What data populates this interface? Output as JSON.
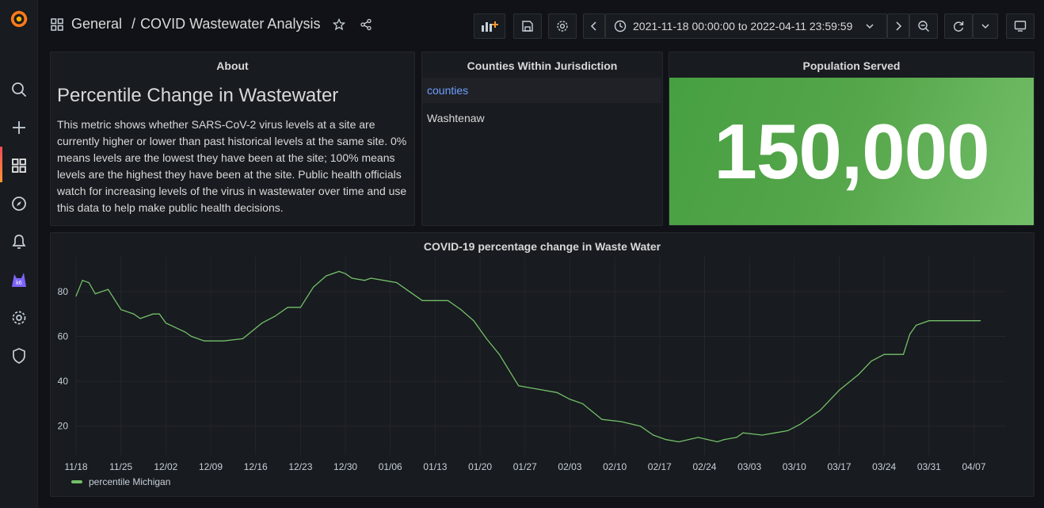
{
  "header": {
    "folder": "General",
    "separator": "/",
    "title": "COVID Wastewater Analysis",
    "time_range": "2021-11-18 00:00:00 to 2022-04-11 23:59:59"
  },
  "sidebar": {
    "items": [
      "grafana-logo-icon",
      "search-icon",
      "plus-icon",
      "dashboards-icon",
      "explore-icon",
      "alerting-icon",
      "k6-icon",
      "gear-icon",
      "shield-icon"
    ]
  },
  "about": {
    "title": "About",
    "heading": "Percentile Change in Wastewater",
    "body": "This metric shows whether SARS-CoV-2 virus levels at a site are currently higher or lower than past historical levels at the same site. 0% means levels are the lowest they have been at the site; 100% means levels are the highest they have been at the site. Public health officials watch for increasing levels of the virus in wastewater over time and use this data to help make public health decisions."
  },
  "counties": {
    "title": "Counties Within Jurisdiction",
    "column": "counties",
    "rows": [
      "Washtenaw"
    ]
  },
  "population": {
    "title": "Population Served",
    "value": "150,000",
    "color": "#56a64b"
  },
  "chart_data": {
    "type": "line",
    "title": "COVID-19 percentage change in Waste Water",
    "x_tick_labels": [
      "11/18",
      "11/25",
      "12/02",
      "12/09",
      "12/16",
      "12/23",
      "12/30",
      "01/06",
      "01/13",
      "01/20",
      "01/27",
      "02/03",
      "02/10",
      "02/17",
      "02/24",
      "03/03",
      "03/10",
      "03/17",
      "03/24",
      "03/31",
      "04/07"
    ],
    "y_ticks": [
      20,
      40,
      60,
      80
    ],
    "ylim": [
      10,
      92
    ],
    "series": [
      {
        "name": "percentile Michigan",
        "color": "#73bf69",
        "x": [
          "2021-11-18",
          "2021-11-19",
          "2021-11-20",
          "2021-11-21",
          "2021-11-23",
          "2021-11-25",
          "2021-11-27",
          "2021-11-28",
          "2021-11-30",
          "2021-12-01",
          "2021-12-02",
          "2021-12-05",
          "2021-12-06",
          "2021-12-08",
          "2021-12-11",
          "2021-12-14",
          "2021-12-17",
          "2021-12-19",
          "2021-12-21",
          "2021-12-23",
          "2021-12-25",
          "2021-12-27",
          "2021-12-29",
          "2021-12-30",
          "2021-12-31",
          "2022-01-02",
          "2022-01-03",
          "2022-01-05",
          "2022-01-07",
          "2022-01-08",
          "2022-01-11",
          "2022-01-15",
          "2022-01-17",
          "2022-01-19",
          "2022-01-21",
          "2022-01-23",
          "2022-01-26",
          "2022-01-28",
          "2022-02-01",
          "2022-02-03",
          "2022-02-05",
          "2022-02-08",
          "2022-02-11",
          "2022-02-14",
          "2022-02-16",
          "2022-02-18",
          "2022-02-20",
          "2022-02-23",
          "2022-02-26",
          "2022-02-27",
          "2022-03-01",
          "2022-03-02",
          "2022-03-05",
          "2022-03-07",
          "2022-03-09",
          "2022-03-11",
          "2022-03-14",
          "2022-03-15",
          "2022-03-17",
          "2022-03-20",
          "2022-03-22",
          "2022-03-24",
          "2022-03-27",
          "2022-03-28",
          "2022-03-29",
          "2022-03-31",
          "2022-04-03",
          "2022-04-08"
        ],
        "values": [
          78,
          85,
          84,
          79,
          81,
          72,
          70,
          68,
          70,
          70,
          66,
          62,
          60,
          58,
          58,
          59,
          66,
          69,
          73,
          73,
          82,
          87,
          89,
          88,
          86,
          85,
          86,
          85,
          84,
          82,
          76,
          76,
          72,
          67,
          59,
          52,
          38,
          37,
          35,
          32,
          30,
          23,
          22,
          20,
          16,
          14,
          13,
          15,
          13,
          14,
          15,
          17,
          16,
          17,
          18,
          21,
          27,
          30,
          36,
          43,
          49,
          52,
          52,
          61,
          65,
          67,
          67,
          67
        ]
      }
    ]
  }
}
